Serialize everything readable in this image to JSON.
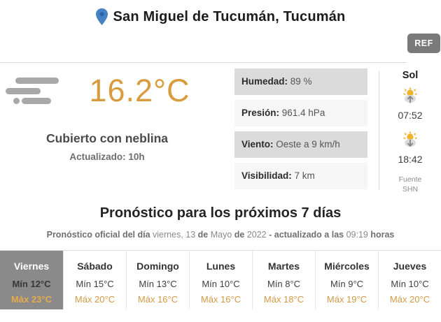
{
  "header": {
    "location": "San Miguel de Tucumán, Tucumán",
    "ref_label": "REF"
  },
  "current": {
    "temperature": "16.2°C",
    "condition": "Cubierto con neblina",
    "updated": "Actualizado: 10h",
    "details": [
      {
        "label": "Humedad:",
        "value": "89 %"
      },
      {
        "label": "Presión:",
        "value": "961.4 hPa"
      },
      {
        "label": "Viento:",
        "value": "Oeste a 9 km/h"
      },
      {
        "label": "Visibilidad:",
        "value": "7 km"
      }
    ],
    "sun": {
      "title": "Sol",
      "sunrise_time": "07:52",
      "sunset_time": "18:42",
      "source_line1": "Fuente",
      "source_line2": "SHN"
    }
  },
  "forecast": {
    "title": "Pronóstico para los próximos 7 días",
    "subtitle_segments": [
      {
        "text": "Pronóstico oficial del día ",
        "bold": true
      },
      {
        "text": "viernes, 13 ",
        "bold": false
      },
      {
        "text": "de ",
        "bold": true
      },
      {
        "text": "Mayo ",
        "bold": false
      },
      {
        "text": "de ",
        "bold": true
      },
      {
        "text": "2022 ",
        "bold": false
      },
      {
        "text": "- actualizado a las ",
        "bold": true
      },
      {
        "text": "09:19 ",
        "bold": false
      },
      {
        "text": "horas",
        "bold": true
      }
    ],
    "days": [
      {
        "name": "Viernes",
        "min": "Mín 12°C",
        "max": "Máx 23°C",
        "selected": true
      },
      {
        "name": "Sábado",
        "min": "Mín 15°C",
        "max": "Máx 20°C",
        "selected": false
      },
      {
        "name": "Domingo",
        "min": "Mín 13°C",
        "max": "Máx 16°C",
        "selected": false
      },
      {
        "name": "Lunes",
        "min": "Mín 10°C",
        "max": "Máx 16°C",
        "selected": false
      },
      {
        "name": "Martes",
        "min": "Mín 8°C",
        "max": "Máx 18°C",
        "selected": false
      },
      {
        "name": "Miércoles",
        "min": "Mín 9°C",
        "max": "Máx 19°C",
        "selected": false
      },
      {
        "name": "Jueves",
        "min": "Mín 10°C",
        "max": "Máx 20°C",
        "selected": false
      }
    ]
  },
  "colors": {
    "accent_orange": "#d89c3e",
    "max_temp_orange": "#d29a45",
    "selected_day_bg": "#8a8a8a",
    "detail_row_dark": "#dbdbdb",
    "detail_row_light": "#f6f6f6",
    "pin_blue": "#4482c3",
    "ref_badge_gray": "#7a7a7a",
    "sun_yellow": "#f0b32a"
  }
}
